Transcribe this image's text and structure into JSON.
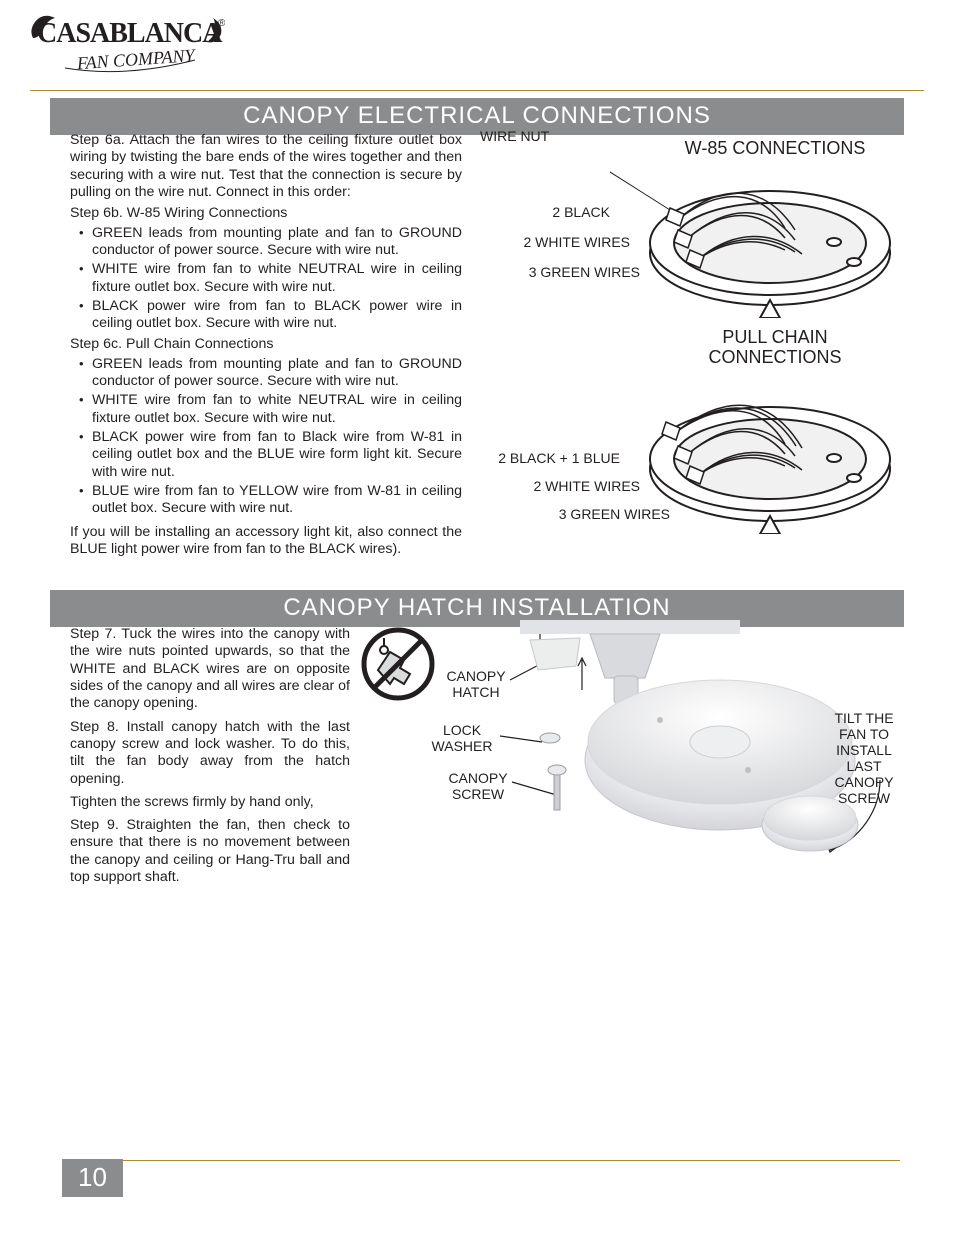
{
  "brand": {
    "name": "CASABLANCA",
    "sub": "FAN COMPANY",
    "reg": "®"
  },
  "colors": {
    "rule": "#b08a2e",
    "bar_bg": "#8a8c8e",
    "bar_fg": "#ffffff",
    "text": "#231f20"
  },
  "section1": {
    "title": "CANOPY ELECTRICAL CONNECTIONS",
    "step6a": "Step 6a. Attach the fan wires to the ceiling fixture outlet box wiring by twisting the bare ends of the wires together and then securing with a wire nut. Test that the connection is secure by pulling on the wire nut. Connect in this order:",
    "step6b_head": "Step 6b. W-85  Wiring Connections",
    "step6b_items": [
      "GREEN leads from mounting plate and fan to GROUND conductor of power source. Secure with wire nut.",
      "WHITE wire from fan to white NEUTRAL wire in ceiling fixture outlet box. Secure with wire nut.",
      "BLACK power wire from fan to BLACK power wire in ceiling outlet box. Secure with wire nut."
    ],
    "step6c_head": "Step 6c. Pull Chain Connections",
    "step6c_items": [
      "GREEN leads from mounting plate and fan to GROUND conductor of power source. Secure with wire nut.",
      "WHITE wire from fan to white NEUTRAL wire in ceiling fixture outlet box. Secure with wire nut.",
      "BLACK power wire from fan to Black wire from W-81 in ceiling outlet box and the BLUE wire form light kit. Secure with wire nut.",
      "BLUE wire from fan to YELLOW wire from W-81 in ceiling outlet box. Secure with wire nut."
    ],
    "tail": "If you will be installing an accessory light kit, also connect the BLUE light power wire from fan to the BLACK wires).",
    "diagram": {
      "wire_nut_label": "WIRE NUT",
      "w85_title": "W-85 CONNECTIONS",
      "w85_labels": [
        "2 BLACK",
        "2 WHITE WIRES",
        "3 GREEN WIRES"
      ],
      "pc_title": "PULL CHAIN CONNECTIONS",
      "pc_labels": [
        "2 BLACK + 1 BLUE",
        "2 WHITE WIRES",
        "3 GREEN WIRES"
      ],
      "canopy_stroke": "#231f20",
      "canopy_fill": "#ffffff",
      "wire_colors": {
        "black": "#231f20",
        "white": "#bdbdbd",
        "green": "#6b6b6b"
      }
    }
  },
  "section2": {
    "title": "CANOPY HATCH INSTALLATION",
    "step7": "Step 7. Tuck the wires into the canopy with the wire nuts pointed upwards, so that the WHITE and BLACK wires are on opposite sides of the canopy and all wires are clear of the canopy opening.",
    "step8a": "Step 8. Install canopy hatch with the last canopy screw and lock washer. To do this, tilt the fan body away from the hatch opening.",
    "step8b": "Tighten the screws firmly by hand only,",
    "step9": "Step 9. Straighten the fan, then check to ensure that there is no movement between the canopy and ceiling or Hang-Tru ball and top support shaft.",
    "diagram": {
      "no_power_tool": true,
      "callouts": {
        "canopy_hatch": "CANOPY HATCH",
        "lock_washer": "LOCK WASHER",
        "canopy_screw": "CANOPY SCREW",
        "tilt_note": "TILT THE FAN TO INSTALL LAST CANOPY SCREW"
      },
      "photo_bg": "#e7e7e9",
      "photo_shadow": "#c9cacd"
    }
  },
  "page_number": "10"
}
